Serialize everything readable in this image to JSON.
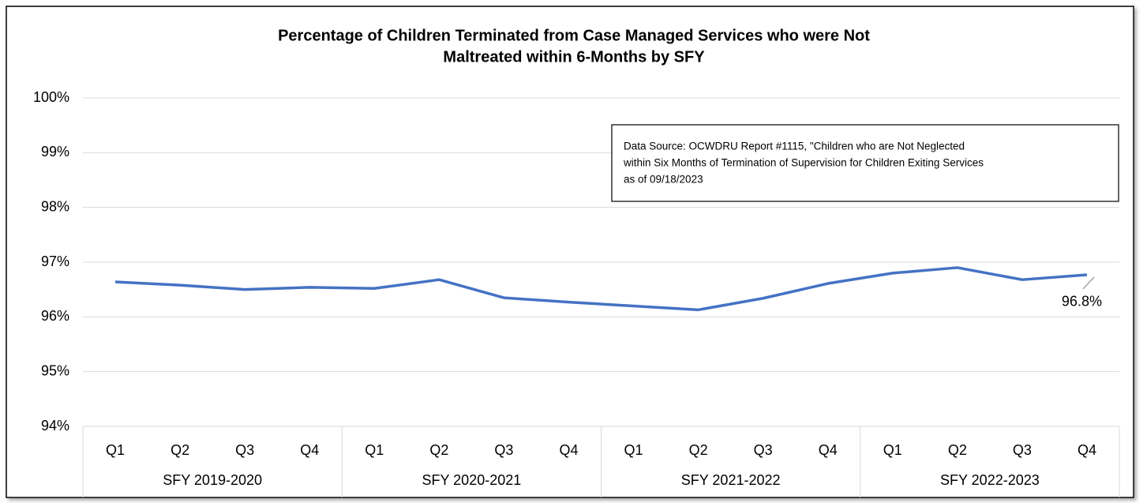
{
  "chart_data": {
    "type": "line",
    "title": [
      "Percentage of Children Terminated from Case Managed Services who were Not",
      "Maltreated within 6-Months by SFY"
    ],
    "categories": [
      "Q1",
      "Q2",
      "Q3",
      "Q4",
      "Q1",
      "Q2",
      "Q3",
      "Q4",
      "Q1",
      "Q2",
      "Q3",
      "Q4",
      "Q1",
      "Q2",
      "Q3",
      "Q4"
    ],
    "groups": [
      {
        "label": "SFY 2019-2020",
        "span": 4
      },
      {
        "label": "SFY 2020-2021",
        "span": 4
      },
      {
        "label": "SFY 2021-2022",
        "span": 4
      },
      {
        "label": "SFY 2022-2023",
        "span": 4
      }
    ],
    "series": [
      {
        "color": "#4472c4",
        "values": [
          96.64,
          96.58,
          96.5,
          96.54,
          96.52,
          96.68,
          96.35,
          96.27,
          96.2,
          96.13,
          96.34,
          96.61,
          96.8,
          96.9,
          96.68,
          96.77
        ],
        "value_labels": [
          null,
          null,
          null,
          null,
          null,
          null,
          null,
          null,
          null,
          null,
          null,
          null,
          null,
          null,
          null,
          "96.8%"
        ]
      }
    ],
    "ylim": [
      94,
      100
    ],
    "yticks": [
      {
        "value": 94,
        "label": "94%"
      },
      {
        "value": 95,
        "label": "95%"
      },
      {
        "value": 96,
        "label": "96%"
      },
      {
        "value": 97,
        "label": "97%"
      },
      {
        "value": 98,
        "label": "98%"
      },
      {
        "value": 99,
        "label": "99%"
      },
      {
        "value": 100,
        "label": "100%"
      }
    ],
    "grid": true,
    "note": [
      "Data Source: OCWDRU Report #1115, \"Children who are Not Neglected",
      "within Six Months of Termination of Supervision for Children Exiting Services",
      "as of 09/18/2023"
    ]
  }
}
